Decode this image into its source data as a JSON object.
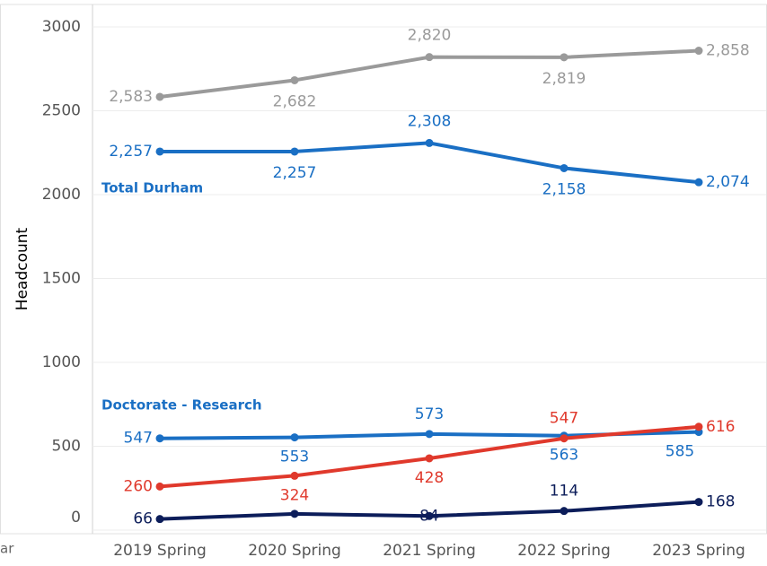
{
  "chart_data": {
    "type": "line",
    "y_axis_label": "Headcount",
    "cut_text": "ar",
    "categories": [
      "2019 Spring",
      "2020 Spring",
      "2021 Spring",
      "2022 Spring",
      "2023 Spring"
    ],
    "ylim": [
      0,
      3000
    ],
    "yticks": [
      0,
      500,
      1000,
      1500,
      2000,
      2500,
      3000
    ],
    "grid": true,
    "series": [
      {
        "color": "#9a9a9a",
        "values": [
          2583,
          2682,
          2820,
          2819,
          2858
        ],
        "value_labels": [
          "2,583",
          "2,682",
          "2,820",
          "2,819",
          "2,858"
        ]
      },
      {
        "name": "Total Durham",
        "color": "#1a6fc4",
        "values": [
          2257,
          2257,
          2308,
          2158,
          2074
        ],
        "value_labels": [
          "2,257",
          "2,257",
          "2,308",
          "2,158",
          "2,074"
        ]
      },
      {
        "name": "Doctorate - Research",
        "color": "#1a6fc4",
        "values": [
          547,
          553,
          573,
          563,
          585
        ]
      },
      {
        "color": "#e0392c",
        "values": [
          260,
          324,
          428,
          547,
          616
        ]
      },
      {
        "color": "#0c1d5a",
        "values": [
          66,
          97,
          84,
          114,
          168
        ],
        "value_labels": [
          "66",
          null,
          "84",
          "114",
          "168"
        ]
      }
    ]
  }
}
